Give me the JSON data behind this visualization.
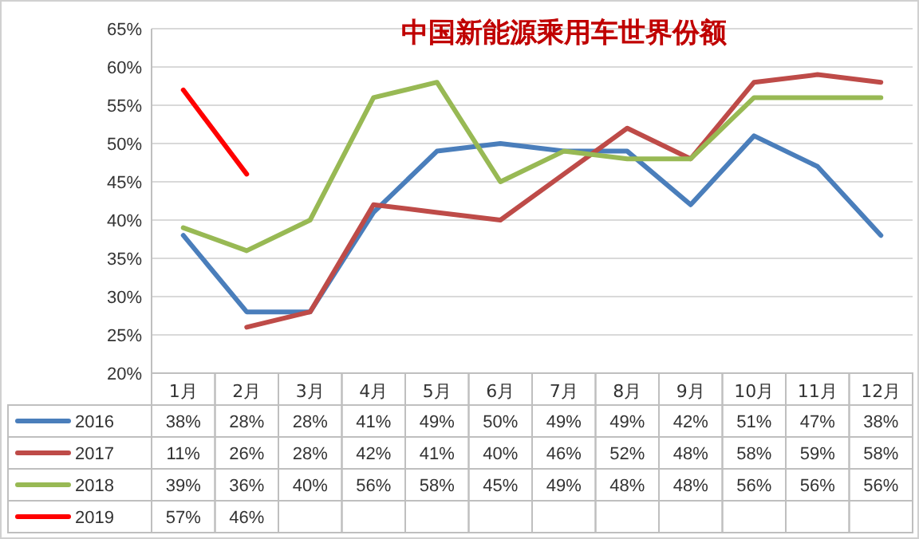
{
  "chart_data": {
    "type": "line",
    "title": "中国新能源乘用车世界份额",
    "categories": [
      "1月",
      "2月",
      "3月",
      "4月",
      "5月",
      "6月",
      "7月",
      "8月",
      "9月",
      "10月",
      "11月",
      "12月"
    ],
    "series": [
      {
        "name": "2016",
        "color": "#4a7ebb",
        "values": [
          38,
          28,
          28,
          41,
          49,
          50,
          49,
          49,
          42,
          51,
          47,
          38
        ],
        "value_labels": [
          "38%",
          "28%",
          "28%",
          "41%",
          "49%",
          "50%",
          "49%",
          "49%",
          "42%",
          "51%",
          "47%",
          "38%"
        ]
      },
      {
        "name": "2017",
        "color": "#be4b48",
        "values": [
          null,
          26,
          28,
          42,
          41,
          40,
          46,
          52,
          48,
          58,
          59,
          58
        ],
        "value_labels": [
          "11%",
          "26%",
          "28%",
          "42%",
          "41%",
          "40%",
          "46%",
          "52%",
          "48%",
          "58%",
          "59%",
          "58%"
        ]
      },
      {
        "name": "2018",
        "color": "#98b954",
        "values": [
          39,
          36,
          40,
          56,
          58,
          45,
          49,
          48,
          48,
          56,
          56,
          56
        ],
        "value_labels": [
          "39%",
          "36%",
          "40%",
          "56%",
          "58%",
          "45%",
          "49%",
          "48%",
          "48%",
          "56%",
          "56%",
          "56%"
        ]
      },
      {
        "name": "2019",
        "color": "#ff0000",
        "values": [
          57,
          46,
          null,
          null,
          null,
          null,
          null,
          null,
          null,
          null,
          null,
          null
        ],
        "value_labels": [
          "57%",
          "46%",
          null,
          null,
          null,
          null,
          null,
          null,
          null,
          null,
          null,
          null
        ]
      }
    ],
    "ylim": [
      20,
      65
    ],
    "yticks": [
      {
        "value": 20,
        "label": "20%"
      },
      {
        "value": 25,
        "label": "25%"
      },
      {
        "value": 30,
        "label": "30%"
      },
      {
        "value": 35,
        "label": "35%"
      },
      {
        "value": 40,
        "label": "40%"
      },
      {
        "value": 45,
        "label": "45%"
      },
      {
        "value": 50,
        "label": "50%"
      },
      {
        "value": 55,
        "label": "55%"
      },
      {
        "value": 60,
        "label": "60%"
      },
      {
        "value": 65,
        "label": "65%"
      }
    ],
    "grid": "y",
    "legend": "bottom left",
    "marker": "none",
    "line_style": "solid"
  }
}
